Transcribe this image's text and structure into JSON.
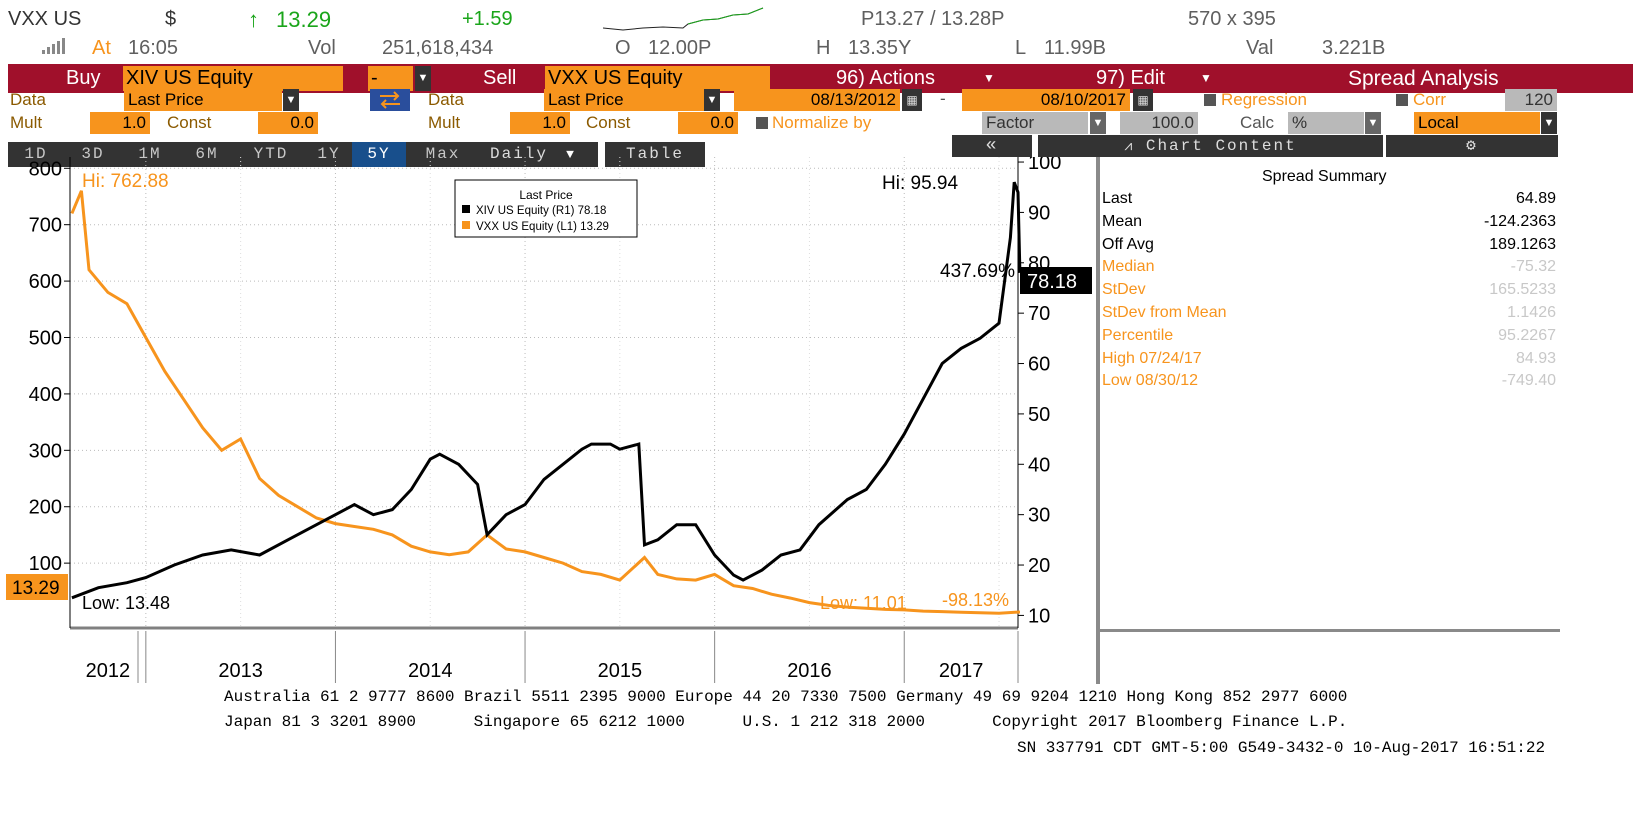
{
  "header": {
    "ticker": "VXX US",
    "currency_symbol": "$",
    "up_arrow": "↑",
    "last_price": "13.29",
    "change": "+1.59",
    "bid_ask": "P13.27 / 13.28P",
    "size": "570 x 395",
    "at_label": "At",
    "time": "16:05",
    "vol_label": "Vol",
    "volume": "251,618,434",
    "open_label": "O",
    "open": "12.00P",
    "high_label": "H",
    "high": "13.35Y",
    "low_label": "L",
    "low": "11.99B",
    "val_label": "Val",
    "value": "3.221B"
  },
  "action_bar": {
    "buy_label": "Buy",
    "buy_security": "XIV US Equity",
    "operator": "-",
    "sell_label": "Sell",
    "sell_security": "VXX US Equity",
    "actions_label": "96) Actions",
    "edit_label": "97) Edit",
    "spread_label": "Spread Analysis"
  },
  "settings": {
    "data_label": "Data",
    "buy_data": "Last Price",
    "sell_data": "Last Price",
    "start_date": "08/13/2012",
    "date_sep": "-",
    "end_date": "08/10/2017",
    "regression_label": "Regression",
    "corr_label": "Corr",
    "corr_value": "120",
    "mult_label": "Mult",
    "buy_mult": "1.0",
    "const_label": "Const",
    "buy_const": "0.0",
    "sell_mult": "1.0",
    "sell_const": "0.0",
    "normalize_label": "Normalize by",
    "factor_label": "Factor",
    "factor_value": "100.0",
    "calc_label": "Calc",
    "calc_value": "%",
    "currency": "Local"
  },
  "tabs": {
    "periods": [
      "1D",
      "3D",
      "1M",
      "6M",
      "YTD",
      "1Y",
      "5Y",
      "Max"
    ],
    "active": "5Y",
    "frequency": "Daily",
    "table_label": "Table",
    "collapse_label": "«",
    "chart_content_label": "Chart Content",
    "gear": "⚙"
  },
  "chart_data": {
    "type": "line",
    "legend_title": "Last Price",
    "legend_position": "top-center",
    "series": [
      {
        "name": "XIV US Equity",
        "legend": "XIV US Equity  (R1) 78.18",
        "axis": "right",
        "color": "#000000",
        "last_label": "78.18",
        "change_label": "437.69%",
        "hi_label": "Hi: 95.94",
        "low_label": "Low: 13.48",
        "points": [
          [
            2012.61,
            13.5
          ],
          [
            2012.75,
            15.5
          ],
          [
            2012.9,
            16.5
          ],
          [
            2013.0,
            17.5
          ],
          [
            2013.15,
            20
          ],
          [
            2013.3,
            22
          ],
          [
            2013.45,
            23
          ],
          [
            2013.6,
            22
          ],
          [
            2013.75,
            25
          ],
          [
            2013.9,
            28
          ],
          [
            2014.0,
            30
          ],
          [
            2014.1,
            32
          ],
          [
            2014.2,
            30
          ],
          [
            2014.3,
            31
          ],
          [
            2014.4,
            35
          ],
          [
            2014.5,
            41
          ],
          [
            2014.55,
            42
          ],
          [
            2014.65,
            40
          ],
          [
            2014.75,
            36
          ],
          [
            2014.8,
            26
          ],
          [
            2014.9,
            30
          ],
          [
            2015.0,
            32
          ],
          [
            2015.1,
            37
          ],
          [
            2015.2,
            40
          ],
          [
            2015.3,
            43
          ],
          [
            2015.35,
            44
          ],
          [
            2015.45,
            44
          ],
          [
            2015.5,
            43
          ],
          [
            2015.6,
            44
          ],
          [
            2015.63,
            24
          ],
          [
            2015.7,
            25
          ],
          [
            2015.8,
            28
          ],
          [
            2015.9,
            28
          ],
          [
            2016.0,
            22
          ],
          [
            2016.1,
            18
          ],
          [
            2016.15,
            17
          ],
          [
            2016.25,
            19
          ],
          [
            2016.35,
            22
          ],
          [
            2016.45,
            23
          ],
          [
            2016.55,
            28
          ],
          [
            2016.7,
            33
          ],
          [
            2016.8,
            35
          ],
          [
            2016.9,
            40
          ],
          [
            2017.0,
            46
          ],
          [
            2017.1,
            53
          ],
          [
            2017.2,
            60
          ],
          [
            2017.3,
            63
          ],
          [
            2017.4,
            65
          ],
          [
            2017.5,
            68
          ],
          [
            2017.56,
            85
          ],
          [
            2017.58,
            96
          ],
          [
            2017.6,
            94
          ],
          [
            2017.61,
            78.18
          ]
        ]
      },
      {
        "name": "VXX US Equity",
        "legend": "VXX US Equity  (L1) 13.29",
        "axis": "left",
        "color": "#f7941d",
        "last_label": "13.29",
        "change_label": "-98.13%",
        "hi_label": "Hi: 762.88",
        "low_label": "Low: 11.01",
        "points": [
          [
            2012.61,
            720
          ],
          [
            2012.66,
            760
          ],
          [
            2012.7,
            620
          ],
          [
            2012.8,
            580
          ],
          [
            2012.9,
            560
          ],
          [
            2013.0,
            500
          ],
          [
            2013.1,
            440
          ],
          [
            2013.2,
            390
          ],
          [
            2013.3,
            340
          ],
          [
            2013.4,
            300
          ],
          [
            2013.5,
            320
          ],
          [
            2013.6,
            250
          ],
          [
            2013.7,
            220
          ],
          [
            2013.8,
            200
          ],
          [
            2013.9,
            180
          ],
          [
            2014.0,
            170
          ],
          [
            2014.1,
            165
          ],
          [
            2014.2,
            160
          ],
          [
            2014.3,
            150
          ],
          [
            2014.4,
            130
          ],
          [
            2014.5,
            120
          ],
          [
            2014.6,
            115
          ],
          [
            2014.7,
            120
          ],
          [
            2014.8,
            150
          ],
          [
            2014.9,
            125
          ],
          [
            2015.0,
            120
          ],
          [
            2015.1,
            110
          ],
          [
            2015.2,
            100
          ],
          [
            2015.3,
            85
          ],
          [
            2015.4,
            80
          ],
          [
            2015.5,
            70
          ],
          [
            2015.63,
            110
          ],
          [
            2015.7,
            80
          ],
          [
            2015.8,
            72
          ],
          [
            2015.9,
            70
          ],
          [
            2016.0,
            80
          ],
          [
            2016.1,
            60
          ],
          [
            2016.2,
            55
          ],
          [
            2016.3,
            45
          ],
          [
            2016.4,
            38
          ],
          [
            2016.5,
            30
          ],
          [
            2016.6,
            25
          ],
          [
            2016.7,
            22
          ],
          [
            2016.8,
            20
          ],
          [
            2016.9,
            18
          ],
          [
            2017.0,
            17
          ],
          [
            2017.1,
            15
          ],
          [
            2017.2,
            14
          ],
          [
            2017.3,
            13
          ],
          [
            2017.4,
            12
          ],
          [
            2017.5,
            11.2
          ],
          [
            2017.61,
            13.29
          ]
        ]
      }
    ],
    "left_axis": {
      "ylim": [
        -15,
        820
      ],
      "ticks": [
        100,
        200,
        300,
        400,
        500,
        600,
        700,
        800
      ]
    },
    "right_axis": {
      "ylim": [
        7.5,
        101
      ],
      "ticks": [
        10,
        20,
        30,
        40,
        50,
        60,
        70,
        80,
        90,
        100
      ]
    },
    "xlim": [
      2012.6,
      2017.6
    ],
    "x_year_labels": [
      "2012",
      "2013",
      "2014",
      "2015",
      "2016",
      "2017"
    ],
    "grid": true
  },
  "summary": {
    "title": "Spread Summary",
    "rows": [
      {
        "label": "Last",
        "value": "64.89",
        "dim": false
      },
      {
        "label": "Mean",
        "value": "-124.2363",
        "dim": false
      },
      {
        "label": "Off Avg",
        "value": "189.1263",
        "dim": false
      },
      {
        "label": "Median",
        "value": "-75.32",
        "dim": true
      },
      {
        "label": "StDev",
        "value": "165.5233",
        "dim": true
      },
      {
        "label": "StDev from Mean",
        "value": "1.1426",
        "dim": true
      },
      {
        "label": "Percentile",
        "value": "95.2267",
        "dim": true
      },
      {
        "label": "High 07/24/17",
        "value": "84.93",
        "dim": true
      },
      {
        "label": "Low 08/30/12",
        "value": "-749.40",
        "dim": true
      }
    ]
  },
  "footer": {
    "line1": "Australia 61 2 9777 8600 Brazil 5511 2395 9000 Europe 44 20 7330 7500 Germany 49 69 9204 1210 Hong Kong 852 2977 6000",
    "line2": "Japan 81 3 3201 8900      Singapore 65 6212 1000      U.S. 1 212 318 2000       Copyright 2017 Bloomberg Finance L.P.",
    "line3": "SN 337791 CDT  GMT-5:00 G549-3432-0 10-Aug-2017 16:51:22"
  },
  "colors": {
    "accent_bar": "#a0102b",
    "orange": "#f7941d",
    "active_tab": "#184f8c",
    "up_green": "#1aa51a"
  }
}
